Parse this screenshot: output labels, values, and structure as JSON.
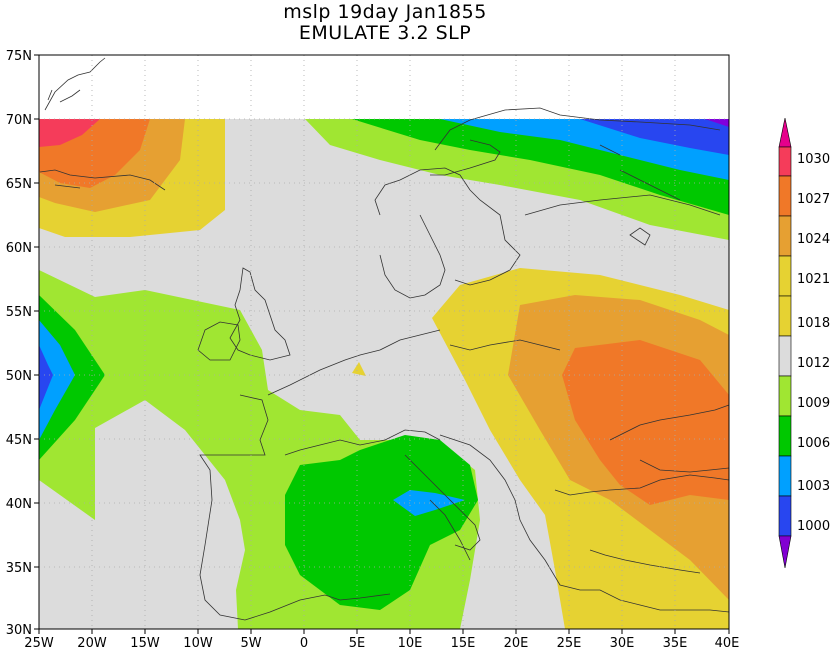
{
  "title": "mslp 19day Jan1855",
  "subtitle": "EMULATE 3.2 SLP",
  "map": {
    "x_ticks": [
      "25W",
      "20W",
      "15W",
      "10W",
      "5W",
      "0",
      "5E",
      "10E",
      "15E",
      "20E",
      "25E",
      "30E",
      "35E",
      "40E"
    ],
    "y_ticks": [
      "75N",
      "70N",
      "65N",
      "60N",
      "55N",
      "50N",
      "45N",
      "40N",
      "35N",
      "30N"
    ],
    "lon_range": [
      -25,
      40
    ],
    "lat_range": [
      30,
      75
    ],
    "grid": "dotted"
  },
  "colorbar": {
    "labels": [
      "1030",
      "1027",
      "1024",
      "1021",
      "1018",
      "1012",
      "1009",
      "1006",
      "1003",
      "1000"
    ],
    "colors": {
      "c1030": "#f53c5a",
      "c1027": "#f07828",
      "c1024": "#e6a032",
      "c1021": "#e6d232",
      "c1018": "#dcdcdc",
      "c1012": "#a0e632",
      "c1009": "#00c800",
      "c1006": "#00a0ff",
      "c1003": "#2846f0",
      "c1000": "#8000dc",
      "top_arrow": "#e6008c",
      "bottom_arrow": "#8200d2"
    }
  }
}
